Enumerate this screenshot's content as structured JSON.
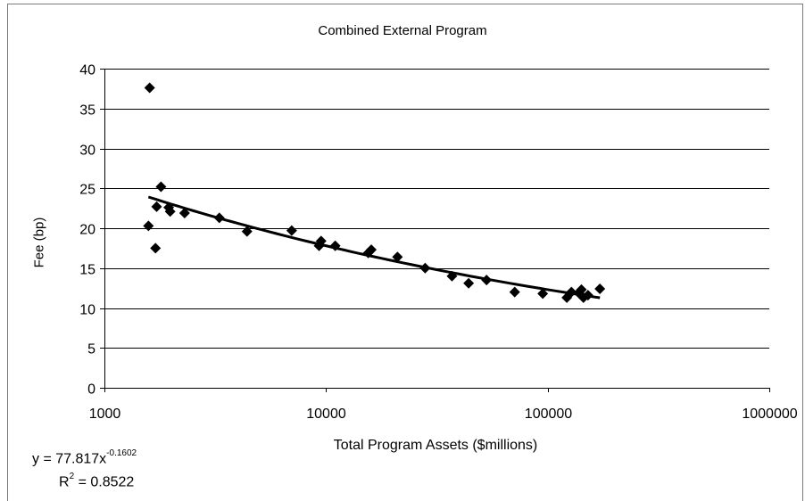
{
  "chart_data": {
    "type": "scatter",
    "title": "Combined External Program",
    "xlabel": "Total Program Assets ($millions)",
    "ylabel": "Fee (bp)",
    "x_scale": "log",
    "xlim": [
      1000,
      1000000
    ],
    "ylim": [
      0,
      40
    ],
    "x_ticks": [
      1000,
      10000,
      100000,
      1000000
    ],
    "x_tick_labels": [
      "1000",
      "10000",
      "100000",
      "1000000"
    ],
    "y_ticks": [
      0,
      5,
      10,
      15,
      20,
      25,
      30,
      35,
      40
    ],
    "y_tick_labels": [
      "0",
      "5",
      "10",
      "15",
      "20",
      "25",
      "30",
      "35",
      "40"
    ],
    "grid": "horizontal",
    "marker_color": "#000000",
    "series": [
      {
        "marker": "diamond",
        "points": [
          {
            "x": 1600,
            "y": 37.6
          },
          {
            "x": 1580,
            "y": 20.3
          },
          {
            "x": 1700,
            "y": 17.5
          },
          {
            "x": 1720,
            "y": 22.7
          },
          {
            "x": 1800,
            "y": 25.2
          },
          {
            "x": 1950,
            "y": 22.6
          },
          {
            "x": 1980,
            "y": 22.1
          },
          {
            "x": 2300,
            "y": 21.9
          },
          {
            "x": 3300,
            "y": 21.3
          },
          {
            "x": 4400,
            "y": 19.6
          },
          {
            "x": 7000,
            "y": 19.7
          },
          {
            "x": 9300,
            "y": 17.8
          },
          {
            "x": 9500,
            "y": 18.4
          },
          {
            "x": 11000,
            "y": 17.8
          },
          {
            "x": 15500,
            "y": 16.9
          },
          {
            "x": 16000,
            "y": 17.3
          },
          {
            "x": 21000,
            "y": 16.4
          },
          {
            "x": 28000,
            "y": 15.0
          },
          {
            "x": 37000,
            "y": 14.0
          },
          {
            "x": 44000,
            "y": 13.1
          },
          {
            "x": 53000,
            "y": 13.5
          },
          {
            "x": 71000,
            "y": 12.0
          },
          {
            "x": 95000,
            "y": 11.8
          },
          {
            "x": 122000,
            "y": 11.3
          },
          {
            "x": 128000,
            "y": 12.0
          },
          {
            "x": 138000,
            "y": 11.9
          },
          {
            "x": 142000,
            "y": 12.3
          },
          {
            "x": 145000,
            "y": 11.3
          },
          {
            "x": 152000,
            "y": 11.6
          },
          {
            "x": 172000,
            "y": 12.4
          }
        ]
      }
    ],
    "trendline": {
      "type": "power",
      "a": 77.817,
      "b": -0.1602,
      "x_range": [
        1580,
        172000
      ],
      "equation_base": "y = 77.817x",
      "equation_exponent": "-0.1602",
      "r2_base": "R",
      "r2_exponent": "2",
      "r2_value": " = 0.8522"
    }
  }
}
